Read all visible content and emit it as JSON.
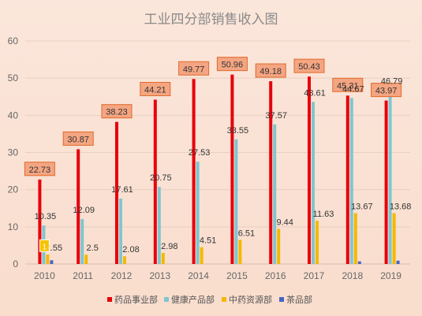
{
  "chart_data": {
    "type": "bar",
    "title": "工业四分部销售收入图",
    "categories": [
      "2010",
      "2011",
      "2012",
      "2013",
      "2014",
      "2015",
      "2016",
      "2017",
      "2018",
      "2019"
    ],
    "series": [
      {
        "name": "药品事业部",
        "color": "#e8000b",
        "values": [
          22.73,
          30.87,
          38.23,
          44.21,
          49.77,
          50.96,
          49.18,
          50.43,
          45.31,
          43.97
        ]
      },
      {
        "name": "健康产品部",
        "color": "#7fc6cf",
        "values": [
          10.35,
          12.09,
          17.61,
          20.75,
          27.53,
          33.55,
          37.57,
          43.61,
          44.67,
          46.79
        ]
      },
      {
        "name": "中药资源部",
        "color": "#f5b800",
        "values": [
          2.55,
          2.5,
          2.08,
          2.98,
          4.51,
          6.51,
          9.44,
          11.63,
          13.67,
          13.68
        ]
      },
      {
        "name": "茶品部",
        "color": "#4565c2",
        "values": [
          1,
          null,
          null,
          null,
          null,
          null,
          null,
          null,
          0.7,
          0.9
        ]
      }
    ],
    "data_labels": {
      "药品事业部": [
        "22.73",
        "30.87",
        "38.23",
        "44.21",
        "49.77",
        "50.96",
        "49.18",
        "50.43",
        "45.31",
        "43.97"
      ],
      "健康产品部": [
        "10.35",
        "12.09",
        "17.61",
        "20.75",
        "27.53",
        "33.55",
        "37.57",
        "43.61",
        "44.67",
        "46.79"
      ],
      "中药资源部": [
        "2.55",
        "2.5",
        "2.08",
        "2.98",
        "4.51",
        "6.51",
        "9.44",
        "11.63",
        "13.67",
        "13.68"
      ],
      "茶品部": [
        "1",
        "",
        "",
        "",
        "",
        "",
        "",
        "",
        "",
        ""
      ]
    },
    "yticks": [
      "0",
      "10",
      "20",
      "30",
      "40",
      "50",
      "60"
    ],
    "ylim": [
      0,
      60
    ],
    "xlabel": "",
    "ylabel": "",
    "grid": true,
    "legend_position": "bottom",
    "label_box_fill": "#f4a582",
    "label_box_border": "#e06a2a",
    "tea_label_fill": "#f7c300"
  }
}
